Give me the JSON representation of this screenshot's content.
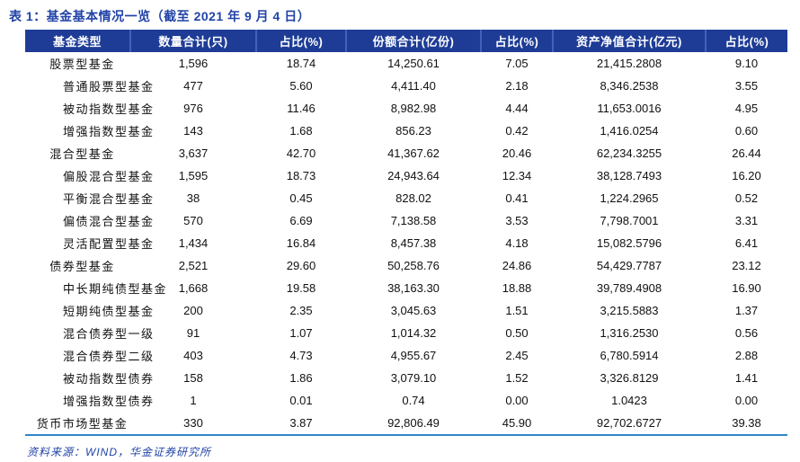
{
  "title": "表 1：基金基本情况一览（截至 2021 年 9 月 4 日）",
  "table": {
    "columns": [
      "基金类型",
      "数量合计(只)",
      "占比(%)",
      "份额合计(亿份)",
      "占比(%)",
      "资产净值合计(亿元)",
      "占比(%)"
    ],
    "rows": [
      {
        "name": "股票型基金",
        "level": 0,
        "values": [
          "1,596",
          "18.74",
          "14,250.61",
          "7.05",
          "21,415.2808",
          "9.10"
        ]
      },
      {
        "name": "普通股票型基金",
        "level": 1,
        "values": [
          "477",
          "5.60",
          "4,411.40",
          "2.18",
          "8,346.2538",
          "3.55"
        ]
      },
      {
        "name": "被动指数型基金",
        "level": 1,
        "values": [
          "976",
          "11.46",
          "8,982.98",
          "4.44",
          "11,653.0016",
          "4.95"
        ]
      },
      {
        "name": "增强指数型基金",
        "level": 1,
        "values": [
          "143",
          "1.68",
          "856.23",
          "0.42",
          "1,416.0254",
          "0.60"
        ]
      },
      {
        "name": "混合型基金",
        "level": 0,
        "values": [
          "3,637",
          "42.70",
          "41,367.62",
          "20.46",
          "62,234.3255",
          "26.44"
        ]
      },
      {
        "name": "偏股混合型基金",
        "level": 1,
        "values": [
          "1,595",
          "18.73",
          "24,943.64",
          "12.34",
          "38,128.7493",
          "16.20"
        ]
      },
      {
        "name": "平衡混合型基金",
        "level": 1,
        "values": [
          "38",
          "0.45",
          "828.02",
          "0.41",
          "1,224.2965",
          "0.52"
        ]
      },
      {
        "name": "偏债混合型基金",
        "level": 1,
        "values": [
          "570",
          "6.69",
          "7,138.58",
          "3.53",
          "7,798.7001",
          "3.31"
        ]
      },
      {
        "name": "灵活配置型基金",
        "level": 1,
        "values": [
          "1,434",
          "16.84",
          "8,457.38",
          "4.18",
          "15,082.5796",
          "6.41"
        ]
      },
      {
        "name": "债券型基金",
        "level": 0,
        "values": [
          "2,521",
          "29.60",
          "50,258.76",
          "24.86",
          "54,429.7787",
          "23.12"
        ]
      },
      {
        "name": "中长期纯债型基金",
        "level": 1,
        "values": [
          "1,668",
          "19.58",
          "38,163.30",
          "18.88",
          "39,789.4908",
          "16.90"
        ]
      },
      {
        "name": "短期纯债型基金",
        "level": 1,
        "values": [
          "200",
          "2.35",
          "3,045.63",
          "1.51",
          "3,215.5883",
          "1.37"
        ]
      },
      {
        "name": "混合债券型一级",
        "level": 1,
        "values": [
          "91",
          "1.07",
          "1,014.32",
          "0.50",
          "1,316.2530",
          "0.56"
        ]
      },
      {
        "name": "混合债券型二级",
        "level": 1,
        "values": [
          "403",
          "4.73",
          "4,955.67",
          "2.45",
          "6,780.5914",
          "2.88"
        ]
      },
      {
        "name": "被动指数型债券",
        "level": 1,
        "values": [
          "158",
          "1.86",
          "3,079.10",
          "1.52",
          "3,326.8129",
          "1.41"
        ]
      },
      {
        "name": "增强指数型债券",
        "level": 1,
        "values": [
          "1",
          "0.01",
          "0.74",
          "0.00",
          "1.0423",
          "0.00"
        ]
      },
      {
        "name": "货币市场型基金",
        "level": 0,
        "values": [
          "330",
          "3.87",
          "92,806.49",
          "45.90",
          "92,702.6727",
          "39.38"
        ]
      }
    ]
  },
  "footer": {
    "source": "资料来源：WIND，华金证券研究所"
  },
  "colors": {
    "header_bg": "#1e3c96",
    "header_divider": "#4560ba",
    "title_blue": "#2143a6",
    "bottom_border": "#2e86c8"
  }
}
